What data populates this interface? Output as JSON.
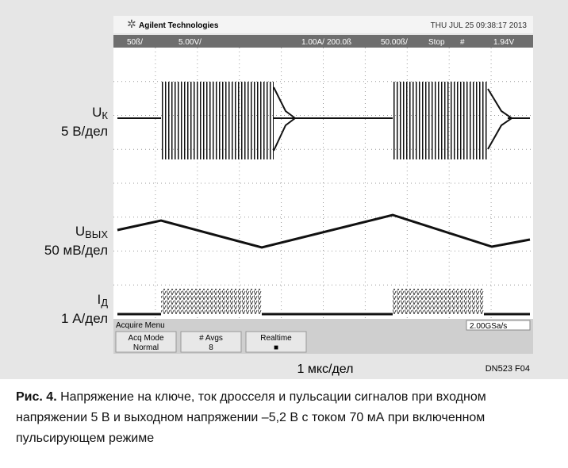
{
  "scope": {
    "brand": "Agilent Technologies",
    "datetime": "THU JUL 25 09:38:17 2013",
    "status": [
      "50ß/",
      "5.00V/",
      "1.00A/",
      "200.0ß",
      "50.00ß/",
      "Stop",
      "#",
      "1.94V"
    ],
    "menu_title": "Acquire Menu",
    "buttons": [
      {
        "top": "Acq Mode",
        "bottom": "Normal"
      },
      {
        "top": "# Avgs",
        "bottom": "8"
      },
      {
        "top": "Realtime",
        "bottom": "■"
      }
    ],
    "sample_rate": "2.00GSa/s"
  },
  "channels": [
    {
      "symbol": "U",
      "subscript": "К",
      "scale": "5 В/дел"
    },
    {
      "symbol": "U",
      "subscript": "ВЫХ",
      "scale": "50 мВ/дел"
    },
    {
      "symbol": "I",
      "subscript": "Д",
      "scale": "1 А/дел"
    }
  ],
  "timebase": "1 мкс/дел",
  "figure_id": "DN523 F04",
  "caption": {
    "label": "Рис. 4.",
    "text": "Напряжение на ключе, ток дросселя и пульсации сигналов при входном напряжении 5 В и выходном напряжении –5,2 В с током 70 мА при включенном пульсирующем режиме"
  }
}
